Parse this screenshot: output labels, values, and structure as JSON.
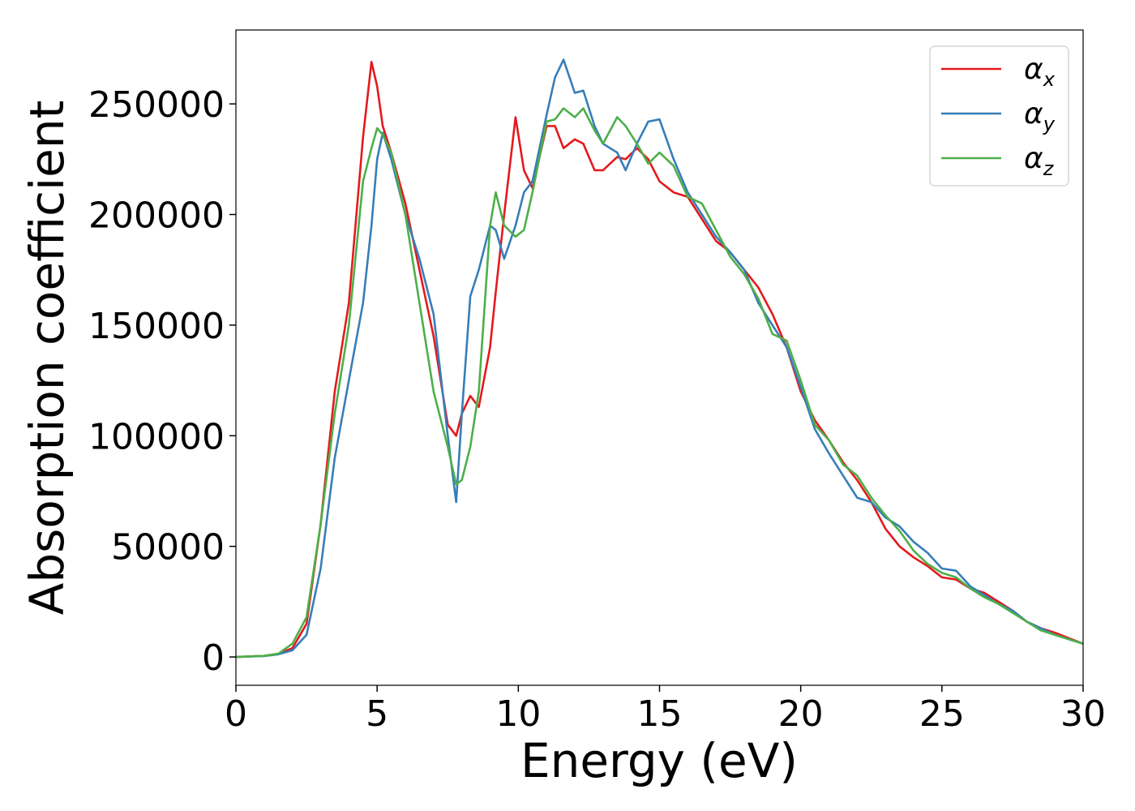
{
  "chart_data": {
    "type": "line",
    "xlabel": "Energy (eV)",
    "ylabel": "Absorption coefficient",
    "x": [
      0,
      1,
      1.5,
      2,
      2.5,
      3,
      3.5,
      4,
      4.5,
      4.8,
      5,
      5.2,
      5.5,
      6,
      6.5,
      7,
      7.5,
      7.8,
      8,
      8.3,
      8.6,
      9,
      9.2,
      9.5,
      9.9,
      10.2,
      10.5,
      11,
      11.3,
      11.6,
      12,
      12.3,
      12.7,
      13,
      13.5,
      13.8,
      14.2,
      14.6,
      15,
      15.5,
      16,
      16.5,
      17,
      17.5,
      18,
      18.5,
      19,
      19.5,
      20,
      20.5,
      21,
      21.5,
      22,
      22.5,
      23,
      23.5,
      24,
      24.5,
      25,
      25.5,
      26,
      26.5,
      27,
      27.5,
      28,
      28.5,
      29,
      29.5,
      30
    ],
    "series": [
      {
        "name": "α_x",
        "color": "#e41a1c",
        "values": [
          0,
          500,
          1500,
          4000,
          15000,
          60000,
          120000,
          160000,
          235000,
          269000,
          258000,
          240000,
          228000,
          205000,
          175000,
          145000,
          105000,
          100000,
          110000,
          118000,
          113000,
          140000,
          165000,
          200000,
          244000,
          220000,
          212000,
          240000,
          240000,
          230000,
          234000,
          232000,
          220000,
          220000,
          226000,
          225000,
          230000,
          225000,
          215000,
          210000,
          208000,
          198000,
          188000,
          183000,
          175000,
          167000,
          155000,
          140000,
          120000,
          107000,
          98000,
          88000,
          80000,
          70000,
          58000,
          50000,
          45000,
          41000,
          36000,
          35000,
          31000,
          29000,
          25000,
          21000,
          16000,
          13000,
          11000,
          8500,
          6000
        ]
      },
      {
        "name": "α_y",
        "color": "#377eb8",
        "values": [
          0,
          400,
          1200,
          3000,
          10000,
          40000,
          90000,
          125000,
          160000,
          195000,
          225000,
          237000,
          225000,
          200000,
          180000,
          155000,
          100000,
          70000,
          110000,
          163000,
          175000,
          195000,
          193000,
          180000,
          195000,
          210000,
          215000,
          245000,
          262000,
          270000,
          255000,
          256000,
          240000,
          232000,
          228000,
          220000,
          232000,
          242000,
          243000,
          225000,
          210000,
          200000,
          190000,
          183000,
          175000,
          160000,
          150000,
          140000,
          122000,
          103000,
          92000,
          82000,
          72000,
          70000,
          63000,
          59000,
          52000,
          47000,
          40000,
          39000,
          32000,
          28000,
          24000,
          21000,
          16000,
          13000,
          10000,
          8000,
          6000
        ]
      },
      {
        "name": "α_z",
        "color": "#4daf4a",
        "values": [
          0,
          500,
          1500,
          6000,
          18000,
          60000,
          110000,
          150000,
          215000,
          230000,
          239000,
          236000,
          228000,
          200000,
          160000,
          120000,
          95000,
          78000,
          80000,
          95000,
          120000,
          195000,
          210000,
          195000,
          190000,
          193000,
          210000,
          242000,
          243000,
          248000,
          244000,
          248000,
          238000,
          232000,
          244000,
          240000,
          232000,
          223000,
          228000,
          222000,
          208000,
          205000,
          193000,
          181000,
          173000,
          162000,
          146000,
          143000,
          125000,
          105000,
          98000,
          87000,
          82000,
          72000,
          64000,
          57000,
          48000,
          42000,
          38000,
          36000,
          31000,
          27000,
          24000,
          20000,
          16000,
          12000,
          10000,
          8000,
          6000
        ]
      }
    ],
    "xlim": [
      0,
      30
    ],
    "xticks": [
      0,
      5,
      10,
      15,
      20,
      25,
      30
    ],
    "ylim": [
      -12800,
      283400
    ],
    "yticks": [
      0,
      50000,
      100000,
      150000,
      200000,
      250000
    ],
    "legend": "upper right",
    "grid": false
  }
}
